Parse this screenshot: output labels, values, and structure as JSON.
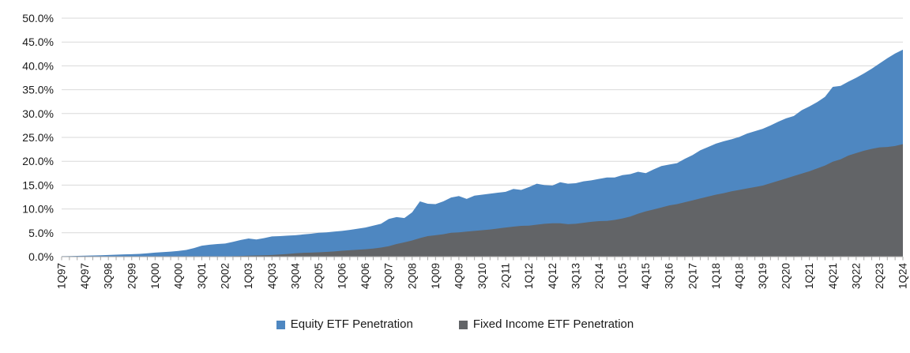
{
  "chart_data": {
    "type": "area",
    "title": "",
    "xlabel": "",
    "ylabel": "",
    "x_count": 109,
    "x_tick_interval": 3,
    "x_tick_labels": [
      "1Q97",
      "4Q97",
      "3Q98",
      "2Q99",
      "1Q00",
      "4Q00",
      "3Q01",
      "2Q02",
      "1Q03",
      "4Q03",
      "3Q04",
      "2Q05",
      "1Q06",
      "4Q06",
      "3Q07",
      "2Q08",
      "1Q09",
      "4Q09",
      "3Q10",
      "2Q11",
      "1Q12",
      "4Q12",
      "3Q13",
      "2Q14",
      "1Q15",
      "4Q15",
      "3Q16",
      "2Q17",
      "1Q18",
      "4Q18",
      "3Q19",
      "2Q20",
      "1Q21",
      "4Q21",
      "3Q22",
      "2Q23",
      "1Q24"
    ],
    "y_axis": {
      "min": 0,
      "max": 50,
      "step": 5,
      "tick_labels": [
        "0.0%",
        "5.0%",
        "10.0%",
        "15.0%",
        "20.0%",
        "25.0%",
        "30.0%",
        "35.0%",
        "40.0%",
        "45.0%",
        "50.0%"
      ]
    },
    "grid": true,
    "legend_position": "bottom",
    "series": [
      {
        "name": "Equity ETF Penetration",
        "color": "#4E87C1",
        "values": [
          0.1,
          0.13,
          0.16,
          0.2,
          0.25,
          0.3,
          0.35,
          0.42,
          0.48,
          0.52,
          0.58,
          0.7,
          0.85,
          0.95,
          1.05,
          1.2,
          1.4,
          1.8,
          2.3,
          2.5,
          2.65,
          2.75,
          3.1,
          3.5,
          3.8,
          3.6,
          3.9,
          4.25,
          4.3,
          4.4,
          4.5,
          4.65,
          4.8,
          5.0,
          5.1,
          5.25,
          5.4,
          5.6,
          5.85,
          6.1,
          6.5,
          6.9,
          7.9,
          8.3,
          8.1,
          9.3,
          11.6,
          11.1,
          11.0,
          11.6,
          12.4,
          12.7,
          12.1,
          12.8,
          13.0,
          13.2,
          13.4,
          13.6,
          14.2,
          14.0,
          14.6,
          15.3,
          15.0,
          14.9,
          15.6,
          15.3,
          15.4,
          15.8,
          16.0,
          16.3,
          16.6,
          16.6,
          17.1,
          17.3,
          17.8,
          17.5,
          18.3,
          19.0,
          19.3,
          19.6,
          20.5,
          21.3,
          22.3,
          23.0,
          23.7,
          24.2,
          24.6,
          25.1,
          25.8,
          26.3,
          26.8,
          27.5,
          28.3,
          29.0,
          29.5,
          30.7,
          31.5,
          32.4,
          33.5,
          35.6,
          35.8,
          36.7,
          37.5,
          38.4,
          39.4,
          40.5,
          41.6,
          42.6,
          43.4
        ]
      },
      {
        "name": "Fixed Income ETF Penetration",
        "color": "#626467",
        "values": [
          0,
          0,
          0,
          0,
          0,
          0,
          0,
          0,
          0,
          0,
          0,
          0,
          0,
          0,
          0,
          0,
          0,
          0,
          0,
          0,
          0,
          0,
          0.1,
          0.15,
          0.2,
          0.25,
          0.3,
          0.35,
          0.45,
          0.55,
          0.7,
          0.8,
          0.85,
          0.9,
          1.0,
          1.1,
          1.25,
          1.35,
          1.45,
          1.55,
          1.7,
          1.9,
          2.2,
          2.65,
          3.0,
          3.4,
          3.9,
          4.3,
          4.5,
          4.7,
          5.0,
          5.1,
          5.25,
          5.4,
          5.55,
          5.7,
          5.9,
          6.1,
          6.3,
          6.45,
          6.5,
          6.7,
          6.9,
          7.0,
          7.0,
          6.8,
          6.9,
          7.1,
          7.3,
          7.45,
          7.5,
          7.7,
          8.0,
          8.4,
          9.0,
          9.5,
          9.9,
          10.3,
          10.75,
          11.0,
          11.4,
          11.8,
          12.2,
          12.6,
          13.0,
          13.3,
          13.7,
          14.0,
          14.3,
          14.6,
          14.9,
          15.4,
          15.9,
          16.4,
          16.9,
          17.4,
          17.9,
          18.5,
          19.1,
          19.9,
          20.4,
          21.2,
          21.7,
          22.2,
          22.6,
          22.9,
          23.0,
          23.2,
          23.6
        ]
      }
    ],
    "style": {
      "gridline_color": "#D9D9D9",
      "axis_color": "#A6A6A6",
      "text_color": "#1a1a1a",
      "background": "#ffffff"
    }
  }
}
